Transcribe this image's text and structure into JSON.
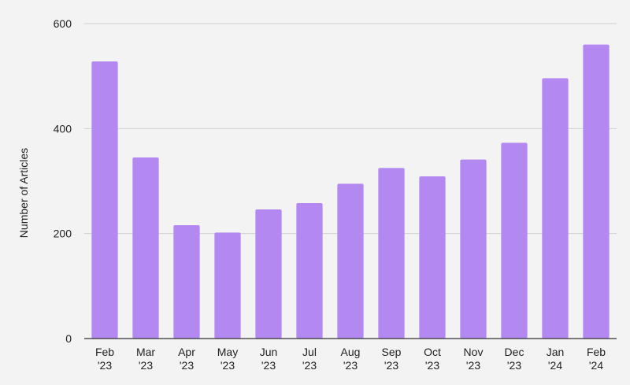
{
  "colors": {
    "background": "#f3f3f3",
    "bar": "#b388f0",
    "gridline": "#cfcfcf",
    "axis_line": "#333333",
    "text": "#222222"
  },
  "chart_data": {
    "type": "bar",
    "categories": [
      "Feb '23",
      "Mar '23",
      "Apr '23",
      "May '23",
      "Jun '23",
      "Jul '23",
      "Aug '23",
      "Sep '23",
      "Oct '23",
      "Nov '23",
      "Dec '23",
      "Jan '24",
      "Feb '24"
    ],
    "category_lines": [
      [
        "Feb",
        "'23"
      ],
      [
        "Mar",
        "'23"
      ],
      [
        "Apr",
        "'23"
      ],
      [
        "May",
        "'23"
      ],
      [
        "Jun",
        "'23"
      ],
      [
        "Jul",
        "'23"
      ],
      [
        "Aug",
        "'23"
      ],
      [
        "Sep",
        "'23"
      ],
      [
        "Oct",
        "'23"
      ],
      [
        "Nov",
        "'23"
      ],
      [
        "Dec",
        "'23"
      ],
      [
        "Jan",
        "'24"
      ],
      [
        "Feb",
        "'24"
      ]
    ],
    "values": [
      528,
      345,
      216,
      202,
      246,
      258,
      295,
      325,
      309,
      341,
      373,
      496,
      560
    ],
    "title": "",
    "xlabel": "",
    "ylabel": "Number of Articles",
    "ylim": [
      0,
      600
    ],
    "yticks": [
      0,
      200,
      400,
      600
    ],
    "grid": true,
    "legend": "none"
  }
}
